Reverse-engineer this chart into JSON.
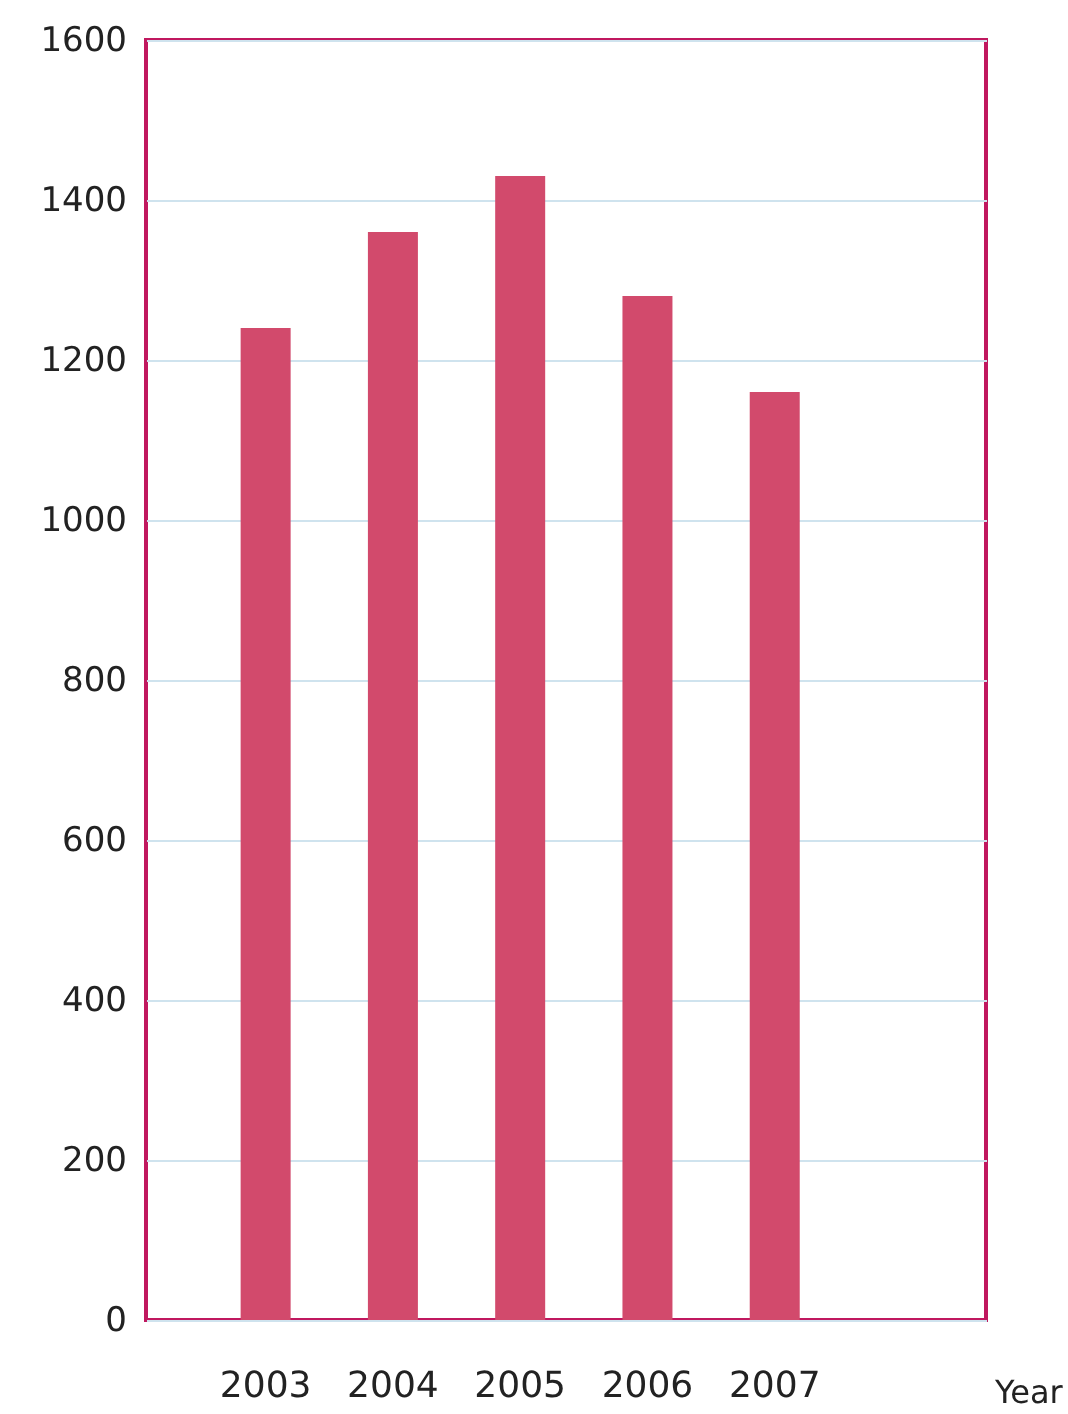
{
  "chart_data": {
    "type": "bar",
    "xlabel": "Year",
    "categories": [
      "2003",
      "2004",
      "2005",
      "2006",
      "2007"
    ],
    "values": [
      1240,
      1360,
      1430,
      1280,
      1160
    ],
    "color": "#d24a6c",
    "ylim": [
      0,
      1600
    ],
    "yticks": [
      0,
      200,
      400,
      600,
      800,
      1000,
      1200,
      1400,
      1600
    ],
    "grid": "y"
  }
}
